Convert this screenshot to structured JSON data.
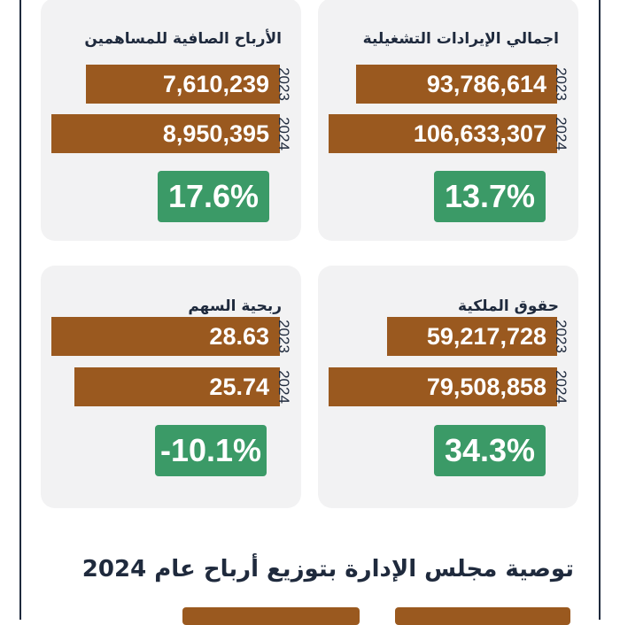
{
  "chart_data": [
    {
      "type": "bar",
      "title": "اجمالي الإيرادات التشغيلية",
      "categories": [
        "2023",
        "2024"
      ],
      "values": [
        93786614,
        106633307
      ],
      "value_labels": [
        "93,786,614",
        "106,633,307"
      ],
      "change": "13.7%"
    },
    {
      "type": "bar",
      "title": "الأرباح الصافية للمساهمين",
      "categories": [
        "2023",
        "2024"
      ],
      "values": [
        7610239,
        8950395
      ],
      "value_labels": [
        "7,610,239",
        "8,950,395"
      ],
      "change": "17.6%"
    },
    {
      "type": "bar",
      "title": "حقوق الملكية",
      "categories": [
        "2023",
        "2024"
      ],
      "values": [
        59217728,
        79508858
      ],
      "value_labels": [
        "59,217,728",
        "79,508,858"
      ],
      "change": "34.3%"
    },
    {
      "type": "bar",
      "title": "ربحية السهم",
      "categories": [
        "2023",
        "2024"
      ],
      "values": [
        28.63,
        25.74
      ],
      "value_labels": [
        "28.63",
        "25.74"
      ],
      "change": "-10.1%"
    }
  ],
  "footer": {
    "title": "توصية مجلس الإدارة بتوزيع أرباح عام 2024"
  },
  "colors": {
    "bar": "#9a591f",
    "change_badge": "#3b9a67",
    "card_bg": "#f2f2f3",
    "text": "#1f2a3d"
  }
}
